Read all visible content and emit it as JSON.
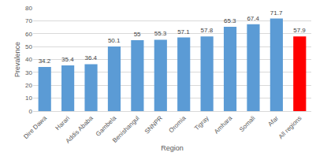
{
  "chart_data": {
    "type": "bar",
    "x_label": "Region",
    "y_label": "Prevalence",
    "categories": [
      "Dire Dawa",
      "Harari",
      "Addis Ababa",
      "Gambela",
      "Benishangul",
      "SNNPR",
      "Oromia",
      "Tigray",
      "Amhara",
      "Somali",
      "Afar",
      "All regions"
    ],
    "values": [
      34.2,
      35.4,
      36.4,
      50.1,
      55,
      55.3,
      57.1,
      57.8,
      65.3,
      67.4,
      71.7,
      57.9
    ],
    "colors": [
      "#5b9bd5",
      "#5b9bd5",
      "#5b9bd5",
      "#5b9bd5",
      "#5b9bd5",
      "#5b9bd5",
      "#5b9bd5",
      "#5b9bd5",
      "#5b9bd5",
      "#5b9bd5",
      "#5b9bd5",
      "#ff0000"
    ],
    "ylim": [
      0,
      80
    ],
    "yticks": [
      0,
      10,
      20,
      30,
      40,
      50,
      60,
      70,
      80
    ],
    "grid": true,
    "data_labels": true
  }
}
